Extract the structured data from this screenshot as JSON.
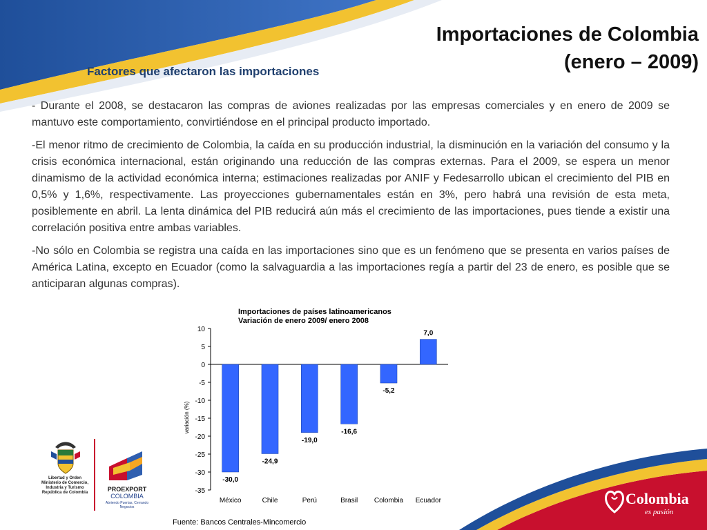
{
  "slide": {
    "title_line1": "Importaciones de Colombia",
    "title_line2": "(enero – 2009)",
    "subtitle": "Factores que afectaron las importaciones"
  },
  "paragraphs": [
    "-  Durante el 2008, se destacaron las compras de aviones realizadas por las empresas comerciales y en enero de 2009 se mantuvo este comportamiento, convirtiéndose en el principal producto importado.",
    "-El menor ritmo de crecimiento de Colombia, la caída en su producción industrial, la disminución en la variación del consumo y la crisis económica internacional, están originando una reducción de las compras externas. Para el 2009, se espera un menor dinamismo de la actividad económica interna; estimaciones realizadas por ANIF y Fedesarrollo ubican el crecimiento del PIB en 0,5% y 1,6%, respectivamente. Las proyecciones gubernamentales están en 3%, pero habrá una revisión de esta meta, posiblemente en abril. La lenta dinámica del PIB reducirá aún más el crecimiento de las importaciones, pues tiende a existir una correlación positiva entre ambas variables.",
    "-No sólo en Colombia se registra una caída en las importaciones sino que es un fenómeno que se presenta en varios países de América Latina, excepto en Ecuador (como la salvaguardia a las importaciones regía a partir del 23 de enero, es posible que se anticiparan algunas compras)."
  ],
  "chart_data": {
    "type": "bar",
    "title": "Importaciones de países latinoamericanos",
    "subtitle": "Variación de enero 2009/ enero 2008",
    "xlabel": "",
    "ylabel": "variación (%)",
    "categories": [
      "México",
      "Chile",
      "Perú",
      "Brasil",
      "Colombia",
      "Ecuador"
    ],
    "values": [
      -30.0,
      -24.9,
      -19.0,
      -16.6,
      -5.2,
      7.0
    ],
    "data_labels": [
      "-30,0",
      "-24,9",
      "-19,0",
      "-16,6",
      "-5,2",
      "7,0"
    ],
    "ylim": [
      -35,
      10
    ],
    "yticks": [
      10,
      5,
      0,
      -5,
      -10,
      -15,
      -20,
      -25,
      -30,
      -35
    ],
    "bar_color": "#3366ff",
    "grid": false
  },
  "source": "Fuente: Bancos Centrales-Mincomercio",
  "logos": {
    "ministry_lines": [
      "Libertad y Orden",
      "Ministerio de Comercio,",
      "Industria y Turismo",
      "República de Colombia"
    ],
    "proexport_name": "PROEXPORT",
    "proexport_country": "COLOMBIA",
    "proexport_tagline": "Abriendo Puertas, Cerrando Negocios",
    "brand_word": "Colombia",
    "brand_tagline": "es pasión"
  },
  "colors": {
    "band_blue": "#1f4f9a",
    "band_yellow": "#f2c230",
    "brand_red": "#c8102e",
    "subtitle_blue": "#1f3f6e"
  }
}
